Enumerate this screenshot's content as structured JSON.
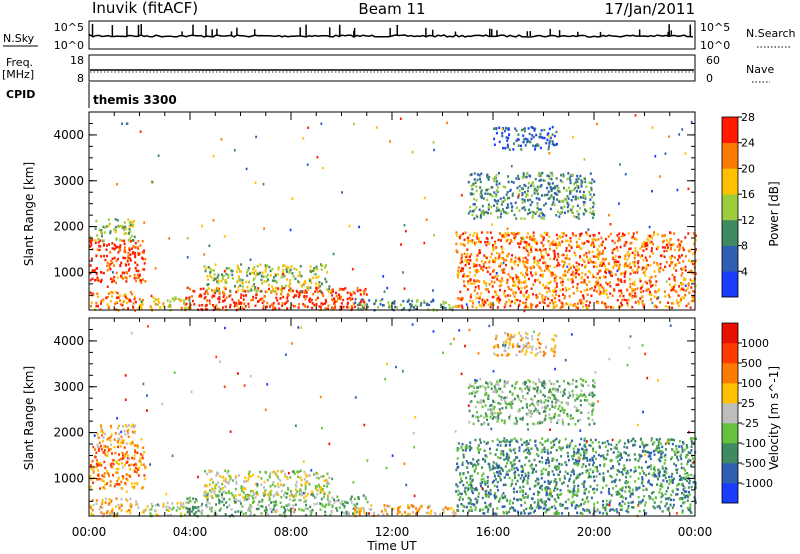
{
  "header": {
    "station": "Inuvik (fitACF)",
    "beam": "Beam 11",
    "date": "17/Jan/2011"
  },
  "noise_panel": {
    "left_label": "N.Sky",
    "right_label": "N.Search",
    "left_ticks": [
      "10^5",
      "10^0"
    ],
    "right_ticks": [
      "10^5",
      "10^0"
    ]
  },
  "freq_panel": {
    "left_label_1": "Freq.",
    "left_label_2": "[MHz]",
    "right_label": "Nave",
    "left_ticks": [
      "18",
      "8"
    ],
    "right_ticks": [
      "60",
      "0"
    ]
  },
  "cpid_panel": {
    "label": "CPID",
    "value": "themis 3300"
  },
  "chart_data": [
    {
      "type": "heatmap",
      "quantity": "Power",
      "ylabel": "Slant Range [km]",
      "xlabel": "",
      "ylim": [
        180,
        4500
      ],
      "xlim_hours": [
        0,
        24
      ],
      "yticks": [
        "1000",
        "2000",
        "3000",
        "4000"
      ],
      "colorbar": {
        "title": "Power [dB]",
        "ticks": [
          "4",
          "8",
          "12",
          "16",
          "20",
          "24",
          "28"
        ],
        "colors": [
          "#1a3cff",
          "#2f5fb0",
          "#3f8a60",
          "#9ccc3c",
          "#ffc000",
          "#ff7a00",
          "#ff1a00"
        ]
      },
      "regions": [
        {
          "t": [
            0.0,
            2.2
          ],
          "r": [
            800,
            1750
          ],
          "level": 6
        },
        {
          "t": [
            0.2,
            1.8
          ],
          "r": [
            1700,
            2200
          ],
          "level": 3
        },
        {
          "t": [
            0.0,
            2.0
          ],
          "r": [
            200,
            600
          ],
          "level": 5
        },
        {
          "t": [
            2.0,
            4.0
          ],
          "r": [
            200,
            500
          ],
          "level": 4
        },
        {
          "t": [
            3.8,
            11.0
          ],
          "r": [
            200,
            700
          ],
          "level": 6
        },
        {
          "t": [
            4.5,
            9.5
          ],
          "r": [
            600,
            1200
          ],
          "level": 3
        },
        {
          "t": [
            10.5,
            14.5
          ],
          "r": [
            200,
            450
          ],
          "level": 2
        },
        {
          "t": [
            14.5,
            24.0
          ],
          "r": [
            250,
            1900
          ],
          "level": 5
        },
        {
          "t": [
            15.0,
            20.0
          ],
          "r": [
            2200,
            3200
          ],
          "level": 2
        },
        {
          "t": [
            16.0,
            18.5
          ],
          "r": [
            3700,
            4200
          ],
          "level": 1
        }
      ]
    },
    {
      "type": "heatmap",
      "quantity": "Velocity",
      "ylabel": "Slant Range [km]",
      "xlabel": "Time UT",
      "ylim": [
        180,
        4500
      ],
      "xlim_hours": [
        0,
        24
      ],
      "yticks": [
        "1000",
        "2000",
        "3000",
        "4000"
      ],
      "xticks": [
        "00:00",
        "04:00",
        "08:00",
        "12:00",
        "16:00",
        "20:00",
        "00:00"
      ],
      "colorbar": {
        "title": "Velocity [m s^-1]",
        "ticks": [
          "1000",
          "500",
          "100",
          "25",
          "-25",
          "-100",
          "-500",
          "-1000"
        ],
        "colors": [
          "#1a3cff",
          "#2f5fb0",
          "#3f8a60",
          "#66c23c",
          "#bdbdbd",
          "#ffc000",
          "#ff7a00",
          "#ff3a00",
          "#e81000"
        ]
      },
      "regions": [
        {
          "t": [
            0.0,
            2.2
          ],
          "r": [
            800,
            1750
          ],
          "level": 6
        },
        {
          "t": [
            0.2,
            1.8
          ],
          "r": [
            1700,
            2200
          ],
          "level": 5
        },
        {
          "t": [
            0.0,
            2.0
          ],
          "r": [
            200,
            600
          ],
          "level": 5
        },
        {
          "t": [
            2.0,
            4.0
          ],
          "r": [
            200,
            500
          ],
          "level": 4
        },
        {
          "t": [
            3.8,
            11.0
          ],
          "r": [
            200,
            700
          ],
          "level": 3
        },
        {
          "t": [
            4.5,
            9.5
          ],
          "r": [
            600,
            1200
          ],
          "level": 4
        },
        {
          "t": [
            10.5,
            14.5
          ],
          "r": [
            200,
            450
          ],
          "level": 5
        },
        {
          "t": [
            14.5,
            24.0
          ],
          "r": [
            250,
            1900
          ],
          "level": 2
        },
        {
          "t": [
            15.0,
            20.0
          ],
          "r": [
            2200,
            3200
          ],
          "level": 3
        },
        {
          "t": [
            16.0,
            18.5
          ],
          "r": [
            3700,
            4200
          ],
          "level": 5
        }
      ]
    }
  ]
}
